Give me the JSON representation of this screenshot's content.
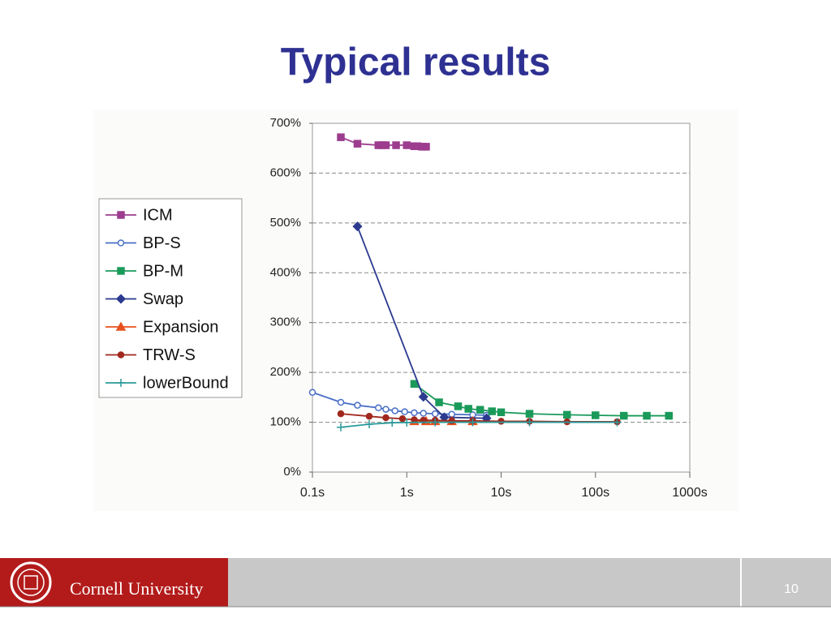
{
  "slide": {
    "title": "Typical results",
    "footer": "Cornell University",
    "page": "10"
  },
  "chart_data": {
    "type": "line",
    "log_x": true,
    "grid": true,
    "legend": "left",
    "xlim": [
      0.1,
      1000
    ],
    "xticks": [
      {
        "value": 0.1,
        "label": "0.1s"
      },
      {
        "value": 1,
        "label": "1s"
      },
      {
        "value": 10,
        "label": "10s"
      },
      {
        "value": 100,
        "label": "100s"
      },
      {
        "value": 1000,
        "label": "1000s"
      }
    ],
    "ylim": [
      0,
      700
    ],
    "yticks": [
      {
        "value": 0,
        "label": "0%"
      },
      {
        "value": 100,
        "label": "100%"
      },
      {
        "value": 200,
        "label": "200%"
      },
      {
        "value": 300,
        "label": "300%"
      },
      {
        "value": 400,
        "label": "400%"
      },
      {
        "value": 500,
        "label": "500%"
      },
      {
        "value": 600,
        "label": "600%"
      },
      {
        "value": 700,
        "label": "700%"
      }
    ],
    "series": [
      {
        "name": "ICM",
        "color": "#9c3d8e",
        "marker": "square",
        "filled": true,
        "x": [
          0.2,
          0.3,
          0.5,
          0.55,
          0.6,
          0.77,
          1.0,
          1.2,
          1.3,
          1.45,
          1.6
        ],
        "values": [
          672,
          659,
          656,
          656,
          656,
          656,
          656,
          654,
          654,
          653,
          653
        ]
      },
      {
        "name": "BP-S",
        "color": "#4a6fc7",
        "marker": "circle",
        "filled": false,
        "x": [
          0.1,
          0.2,
          0.3,
          0.5,
          0.6,
          0.75,
          0.95,
          1.2,
          1.5,
          2,
          3,
          5,
          7
        ],
        "values": [
          160,
          140,
          134,
          129,
          126,
          123,
          121,
          119,
          118,
          117,
          116,
          115,
          114
        ]
      },
      {
        "name": "BP-M",
        "color": "#1a9a5a",
        "marker": "square",
        "filled": true,
        "x": [
          1.2,
          2.2,
          3.5,
          4.5,
          6,
          8,
          10,
          20,
          50,
          100,
          200,
          350,
          600
        ],
        "values": [
          177,
          140,
          132,
          127,
          125,
          122,
          120,
          117,
          115,
          114,
          113,
          113,
          113
        ]
      },
      {
        "name": "Swap",
        "color": "#2b3a8f",
        "marker": "diamond",
        "filled": true,
        "x": [
          0.3,
          1.5,
          2.5,
          7
        ],
        "values": [
          493,
          151,
          110,
          108
        ]
      },
      {
        "name": "Expansion",
        "color": "#e8501e",
        "marker": "triangle",
        "filled": true,
        "x": [
          1.2,
          1.6,
          2,
          3,
          5
        ],
        "values": [
          102,
          102,
          102,
          102,
          102
        ]
      },
      {
        "name": "TRW-S",
        "color": "#a0281e",
        "marker": "circle",
        "filled": true,
        "x": [
          0.2,
          0.4,
          0.6,
          0.9,
          1.2,
          1.5,
          2,
          3,
          5,
          10,
          20,
          50,
          170
        ],
        "values": [
          117,
          112,
          109,
          107,
          105,
          104,
          104,
          103,
          103,
          102,
          102,
          101,
          101
        ]
      },
      {
        "name": "lowerBound",
        "color": "#2a9a9a",
        "marker": "plus",
        "filled": true,
        "x": [
          0.2,
          0.4,
          0.7,
          1.0,
          2,
          5,
          20,
          170
        ],
        "values": [
          90,
          96,
          99,
          99.5,
          100,
          100,
          100,
          100
        ]
      }
    ]
  }
}
